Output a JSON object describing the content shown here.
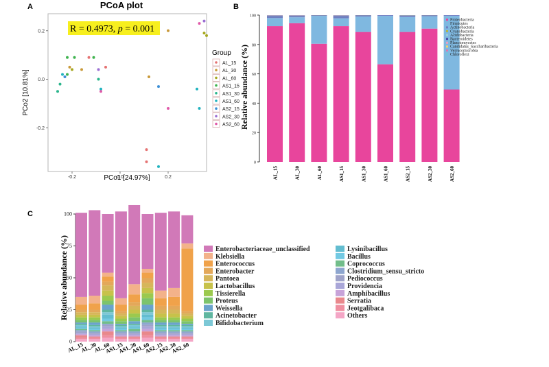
{
  "panels": {
    "a": "A",
    "b": "B",
    "c": "C"
  },
  "chart_data": [
    {
      "type": "scatter",
      "title": "PCoA plot",
      "annotation": "R = 0.4973, p = 0.001",
      "annotation_parts": {
        "r": "R = 0.4973, ",
        "p": "p",
        "rest": " = 0.001"
      },
      "xlabel": "PCo1 [24.97%]",
      "ylabel": "PCo2 [10.81%]",
      "xlim": [
        -0.3,
        0.36
      ],
      "ylim": [
        -0.38,
        0.27
      ],
      "xticks": [
        -0.2,
        0.0,
        0.2
      ],
      "yticks": [
        0.2,
        0.0,
        -0.2
      ],
      "legend_title": "Group",
      "groups": [
        {
          "name": "AL_15",
          "color": "#e57373",
          "points": [
            [
              -0.13,
              0.09
            ],
            [
              -0.06,
              0.05
            ],
            [
              0.11,
              -0.29
            ],
            [
              0.11,
              -0.34
            ]
          ]
        },
        {
          "name": "AL_30",
          "color": "#c99a3a",
          "points": [
            [
              -0.21,
              0.05
            ],
            [
              -0.16,
              0.04
            ],
            [
              0.12,
              0.01
            ],
            [
              0.2,
              0.2
            ]
          ]
        },
        {
          "name": "AL_60",
          "color": "#a6a820",
          "points": [
            [
              -0.2,
              0.04
            ],
            [
              0.36,
              0.18
            ],
            [
              0.35,
              0.19
            ]
          ]
        },
        {
          "name": "AS1_15",
          "color": "#3fb34f",
          "points": [
            [
              -0.22,
              0.09
            ],
            [
              -0.11,
              0.09
            ],
            [
              -0.19,
              0.09
            ],
            [
              -0.22,
              0.02
            ]
          ]
        },
        {
          "name": "AS1_30",
          "color": "#2bb58c",
          "points": [
            [
              -0.26,
              -0.05
            ],
            [
              -0.25,
              -0.02
            ],
            [
              -0.09,
              0.0
            ]
          ]
        },
        {
          "name": "AS1_60",
          "color": "#22b3bf",
          "points": [
            [
              -0.08,
              -0.04
            ],
            [
              -0.24,
              0.02
            ],
            [
              0.16,
              -0.36
            ],
            [
              0.32,
              -0.04
            ],
            [
              0.33,
              -0.12
            ]
          ]
        },
        {
          "name": "AS2_15",
          "color": "#3d8fd6",
          "points": [
            [
              -0.23,
              0.01
            ],
            [
              0.16,
              -0.03
            ]
          ]
        },
        {
          "name": "AS2_30",
          "color": "#9b6fd3",
          "points": [
            [
              -0.09,
              0.04
            ],
            [
              0.35,
              0.24
            ]
          ]
        },
        {
          "name": "AS2_60",
          "color": "#e05aa9",
          "points": [
            [
              -0.08,
              -0.05
            ],
            [
              0.2,
              -0.12
            ],
            [
              0.33,
              0.23
            ]
          ]
        }
      ]
    },
    {
      "type": "bar",
      "stacked": true,
      "ylabel": "Relative abundance (%)",
      "ylim": [
        0,
        100
      ],
      "yticks": [
        0,
        20,
        40,
        60,
        80,
        100
      ],
      "categories": [
        "AL_15",
        "AL_30",
        "AL_60",
        "AS1_15",
        "AS1_30",
        "AS1_60",
        "AS2_15",
        "AS2_30",
        "AS2_60"
      ],
      "series": [
        {
          "name": "Proteobacteria",
          "color": "#e8459c",
          "values": [
            92.5,
            94.5,
            80.5,
            92.5,
            88.5,
            66.5,
            88.5,
            90.8,
            49.3
          ]
        },
        {
          "name": "Firmicutes",
          "color": "#7fb8e0",
          "values": [
            5.5,
            4.0,
            19.0,
            5.3,
            10.5,
            33.0,
            10.2,
            8.4,
            50.2
          ]
        },
        {
          "name": "Actinobacteria",
          "color": "#6f7fc2",
          "values": [
            1.5,
            1.0,
            0.3,
            1.7,
            0.8,
            0.4,
            1.0,
            0.6,
            0.4
          ]
        },
        {
          "name": "Cyanobacteria",
          "color": "#b1b64a",
          "values": [
            0.1,
            0.1,
            0.1,
            0.1,
            0.1,
            0.0,
            0.1,
            0.1,
            0.0
          ]
        },
        {
          "name": "Acidobacteria",
          "color": "#9ecfd8",
          "values": [
            0.1,
            0.1,
            0.0,
            0.1,
            0.0,
            0.0,
            0.1,
            0.0,
            0.0
          ]
        },
        {
          "name": "Bacteroidetes",
          "color": "#4a4aa8",
          "values": [
            0.2,
            0.2,
            0.1,
            0.2,
            0.1,
            0.1,
            0.1,
            0.1,
            0.1
          ]
        },
        {
          "name": "Planctomycetes",
          "color": "#e8a0c0",
          "values": [
            0.1,
            0.1,
            0.0,
            0.1,
            0.0,
            0.0,
            0.0,
            0.0,
            0.0
          ]
        },
        {
          "name": "Candidatus_Saccharibacteria",
          "color": "#f2d26b",
          "values": [
            0.0,
            0.0,
            0.0,
            0.0,
            0.0,
            0.0,
            0.0,
            0.0,
            0.0
          ]
        },
        {
          "name": "Verrucomicrobia",
          "color": "#d77ab0",
          "values": [
            0.0,
            0.0,
            0.0,
            0.0,
            0.0,
            0.0,
            0.0,
            0.0,
            0.0
          ]
        },
        {
          "name": "Chloroflexi",
          "color": "#6fc7d8",
          "values": [
            0.0,
            0.0,
            0.0,
            0.0,
            0.0,
            0.0,
            0.0,
            0.0,
            0.0
          ]
        }
      ]
    },
    {
      "type": "bar",
      "stacked": true,
      "ylabel": "Relative abundance (%)",
      "ylim": [
        0,
        100
      ],
      "yticks": [
        0,
        25,
        50,
        75,
        100
      ],
      "categories": [
        "AL_15",
        "AL_30",
        "AL_60",
        "AS1_15",
        "AS1_30",
        "AS1_60",
        "AS2_15",
        "AS2_30",
        "AS2_60"
      ],
      "series": [
        {
          "name": "Others",
          "color": "#f4a6c6",
          "values": [
            2,
            2,
            3,
            2,
            2,
            3,
            2,
            2,
            2
          ]
        },
        {
          "name": "Jeotgalibaca",
          "color": "#ef8fa0",
          "values": [
            1,
            1,
            2,
            1,
            1,
            2,
            1,
            1,
            1
          ]
        },
        {
          "name": "Serratia",
          "color": "#e9888c",
          "values": [
            2,
            1,
            3,
            1,
            1,
            3,
            1,
            1,
            1
          ]
        },
        {
          "name": "Amphibacillus",
          "color": "#c7a3d9",
          "values": [
            1,
            1,
            2,
            1,
            1,
            2,
            1,
            1,
            1
          ]
        },
        {
          "name": "Providencia",
          "color": "#a9a6d8",
          "values": [
            1,
            1,
            2,
            1,
            1,
            2,
            1,
            1,
            1
          ]
        },
        {
          "name": "Pediococcus",
          "color": "#9fa3c9",
          "values": [
            1,
            1,
            1,
            1,
            1,
            1,
            1,
            1,
            1
          ]
        },
        {
          "name": "Clostridium_sensu_stricto",
          "color": "#8ea6cf",
          "values": [
            1,
            1,
            1,
            1,
            1,
            2,
            1,
            1,
            1
          ]
        },
        {
          "name": "Coprococcus",
          "color": "#72bd8a",
          "values": [
            1,
            1,
            2,
            1,
            2,
            2,
            1,
            1,
            1
          ]
        },
        {
          "name": "Bacillus",
          "color": "#72c9e3",
          "values": [
            1,
            1,
            2,
            1,
            1,
            2,
            1,
            1,
            1
          ]
        },
        {
          "name": "Lysinibacillus",
          "color": "#63bdd0",
          "values": [
            1,
            1,
            3,
            1,
            1,
            2,
            1,
            1,
            1
          ]
        },
        {
          "name": "Bifidobacterium",
          "color": "#7cc8d6",
          "values": [
            1,
            1,
            2,
            1,
            1,
            2,
            1,
            1,
            1
          ]
        },
        {
          "name": "Acinetobacter",
          "color": "#5fb6a0",
          "values": [
            1,
            1,
            2,
            1,
            1,
            2,
            1,
            1,
            1
          ]
        },
        {
          "name": "Weissella",
          "color": "#6aa3cc",
          "values": [
            1,
            2,
            4,
            1,
            2,
            4,
            2,
            2,
            1
          ]
        },
        {
          "name": "Proteus",
          "color": "#7cc36c",
          "values": [
            2,
            2,
            3,
            2,
            3,
            5,
            2,
            2,
            2
          ]
        },
        {
          "name": "Tissierella",
          "color": "#9bc94e",
          "values": [
            2,
            2,
            4,
            2,
            3,
            4,
            2,
            2,
            2
          ]
        },
        {
          "name": "Lactobacillus",
          "color": "#c7c24a",
          "values": [
            2,
            2,
            4,
            2,
            3,
            4,
            3,
            3,
            2
          ]
        },
        {
          "name": "Pantoea",
          "color": "#d6b65a",
          "values": [
            2,
            2,
            4,
            2,
            3,
            4,
            3,
            3,
            2
          ]
        },
        {
          "name": "Enterobacter",
          "color": "#e3a85a",
          "values": [
            2,
            2,
            3,
            2,
            3,
            4,
            3,
            3,
            2
          ]
        },
        {
          "name": "Enterococcus",
          "color": "#f0a24a",
          "values": [
            4,
            5,
            4,
            5,
            6,
            4,
            6,
            7,
            49
          ]
        },
        {
          "name": "Klebsiella",
          "color": "#f3b28a",
          "values": [
            6,
            6,
            3,
            5,
            8,
            3,
            6,
            7,
            4
          ]
        },
        {
          "name": "Enterobacteriaceae_unclassified",
          "color": "#d179b8",
          "values": [
            66,
            67,
            46,
            68,
            62,
            43,
            61,
            60,
            22
          ]
        }
      ],
      "legend_order": [
        "Enterobacteriaceae_unclassified",
        "Klebsiella",
        "Enterococcus",
        "Enterobacter",
        "Pantoea",
        "Lactobacillus",
        "Tissierella",
        "Proteus",
        "Weissella",
        "Acinetobacter",
        "Bifidobacterium",
        "Lysinibacillus",
        "Bacillus",
        "Coprococcus",
        "Clostridium_sensu_stricto",
        "Pediococcus",
        "Providencia",
        "Amphibacillus",
        "Serratia",
        "Jeotgalibaca",
        "Others"
      ]
    }
  ]
}
